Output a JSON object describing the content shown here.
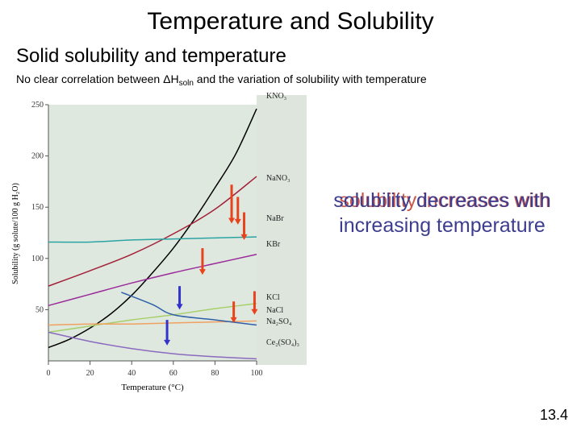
{
  "slide": {
    "title": "Temperature and Solubility",
    "subtitle": "Solid solubility and temperature",
    "note_prefix": "No clear correlation between  ΔH",
    "note_sub": "soln",
    "note_suffix": " and the variation of solubility with temperature",
    "overlay_line1_ghost": "solubility increases with",
    "overlay_line1": "solubility decreases with",
    "overlay_line2": "increasing temperature",
    "page_number": "13.4"
  },
  "chart_data": {
    "type": "line",
    "xlabel": "Temperature (°C)",
    "ylabel": "Solubility (g solute/100 g H₂O)",
    "xlim": [
      0,
      100
    ],
    "ylim": [
      0,
      250
    ],
    "xticks": [
      0,
      20,
      40,
      60,
      80,
      100
    ],
    "yticks": [
      50,
      100,
      150,
      200,
      250
    ],
    "colors": {
      "plot_bg": "#dfe8df",
      "increase_arrow": "#e8431c",
      "decrease_arrow": "#3333cc"
    },
    "series": [
      {
        "name": "KNO₃",
        "color": "#000000",
        "x": [
          0,
          10,
          20,
          30,
          40,
          50,
          60,
          70,
          80,
          90,
          100
        ],
        "y": [
          13,
          21,
          32,
          46,
          64,
          86,
          110,
          138,
          169,
          202,
          246
        ]
      },
      {
        "name": "NaNO₃",
        "color": "#a3203a",
        "x": [
          0,
          20,
          40,
          60,
          80,
          100
        ],
        "y": [
          73,
          88,
          104,
          124,
          148,
          180
        ]
      },
      {
        "name": "NaBr",
        "color": "#2aa3a3",
        "x": [
          0,
          20,
          40,
          60,
          80,
          100
        ],
        "y": [
          116,
          116,
          118,
          119,
          120,
          121
        ]
      },
      {
        "name": "KBr",
        "color": "#9b2a9b",
        "x": [
          0,
          20,
          40,
          60,
          80,
          100
        ],
        "y": [
          54,
          65,
          76,
          86,
          95,
          104
        ]
      },
      {
        "name": "KCl",
        "color": "#a6cf6a",
        "x": [
          0,
          20,
          40,
          60,
          80,
          100
        ],
        "y": [
          28,
          34,
          40,
          45,
          51,
          56
        ]
      },
      {
        "name": "NaCl",
        "color": "#f0a060",
        "x": [
          0,
          20,
          40,
          60,
          80,
          100
        ],
        "y": [
          35,
          36,
          36,
          37,
          38,
          39
        ]
      },
      {
        "name": "Na₂SO₄",
        "color": "#2f5fa8",
        "x": [
          35,
          50,
          60,
          80,
          100
        ],
        "y": [
          67,
          55,
          45,
          40,
          35
        ]
      },
      {
        "name": "Ce₂(SO₄)₃",
        "color": "#8a6abf",
        "x": [
          0,
          20,
          40,
          60,
          80,
          100
        ],
        "y": [
          28,
          19,
          12,
          7,
          4,
          2
        ]
      }
    ],
    "arrows": [
      {
        "direction": "increase",
        "x": 88,
        "y_top": 172,
        "y_bottom": 134
      },
      {
        "direction": "increase",
        "x": 91,
        "y_top": 160,
        "y_bottom": 133
      },
      {
        "direction": "increase",
        "x": 94,
        "y_top": 145,
        "y_bottom": 118
      },
      {
        "direction": "increase",
        "x": 74,
        "y_top": 110,
        "y_bottom": 84
      },
      {
        "direction": "increase",
        "x": 89,
        "y_top": 58,
        "y_bottom": 37
      },
      {
        "direction": "increase",
        "x": 99,
        "y_top": 68,
        "y_bottom": 45
      },
      {
        "direction": "decrease",
        "x": 63,
        "y_top": 73,
        "y_bottom": 50
      },
      {
        "direction": "decrease",
        "x": 57,
        "y_top": 40,
        "y_bottom": 15
      }
    ]
  }
}
